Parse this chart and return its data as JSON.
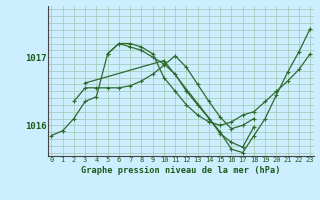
{
  "title": "Graphe pression niveau de la mer (hPa)",
  "bg_color": "#cceeff",
  "grid_color": "#aaccbb",
  "line_color": "#2d6a2d",
  "x_ticks": [
    0,
    1,
    2,
    3,
    4,
    5,
    6,
    7,
    8,
    9,
    10,
    11,
    12,
    13,
    14,
    15,
    16,
    17,
    18,
    19,
    20,
    21,
    22,
    23
  ],
  "y_ticks": [
    1016,
    1017
  ],
  "ylim": [
    1015.55,
    1017.75
  ],
  "xlim": [
    -0.3,
    23.3
  ],
  "series": [
    {
      "x": [
        0,
        1,
        2,
        3,
        4,
        5,
        6,
        7,
        8,
        9,
        10,
        11,
        12,
        13,
        14,
        15,
        16,
        17,
        18,
        19,
        20,
        21,
        22,
        23
      ],
      "y": [
        1015.85,
        1015.92,
        1016.1,
        1016.35,
        1016.42,
        1017.05,
        1017.2,
        1017.2,
        1017.15,
        1017.05,
        1016.7,
        1016.5,
        1016.3,
        1016.15,
        1016.05,
        1016.0,
        1016.05,
        1016.15,
        1016.2,
        1016.35,
        1016.5,
        1016.65,
        1016.82,
        1017.05
      ]
    },
    {
      "x": [
        2,
        3,
        4,
        5,
        6,
        7,
        8,
        9,
        10,
        11,
        12,
        13,
        14,
        15,
        16,
        17,
        18
      ],
      "y": [
        1016.35,
        1016.55,
        1016.55,
        1016.55,
        1016.55,
        1016.58,
        1016.65,
        1016.75,
        1016.88,
        1017.02,
        1016.85,
        1016.6,
        1016.35,
        1016.12,
        1015.95,
        1016.0,
        1016.1
      ]
    },
    {
      "x": [
        5,
        6,
        7,
        8,
        9,
        10,
        11,
        12,
        13,
        14,
        15,
        16,
        17,
        18
      ],
      "y": [
        1017.05,
        1017.2,
        1017.15,
        1017.1,
        1017.0,
        1016.9,
        1016.75,
        1016.5,
        1016.3,
        1016.1,
        1015.88,
        1015.75,
        1015.68,
        1015.98
      ]
    },
    {
      "x": [
        3,
        10,
        15,
        16,
        17,
        18,
        19,
        20,
        21,
        22,
        23
      ],
      "y": [
        1016.62,
        1016.95,
        1015.9,
        1015.65,
        1015.6,
        1015.85,
        1016.1,
        1016.45,
        1016.78,
        1017.08,
        1017.42
      ]
    }
  ]
}
